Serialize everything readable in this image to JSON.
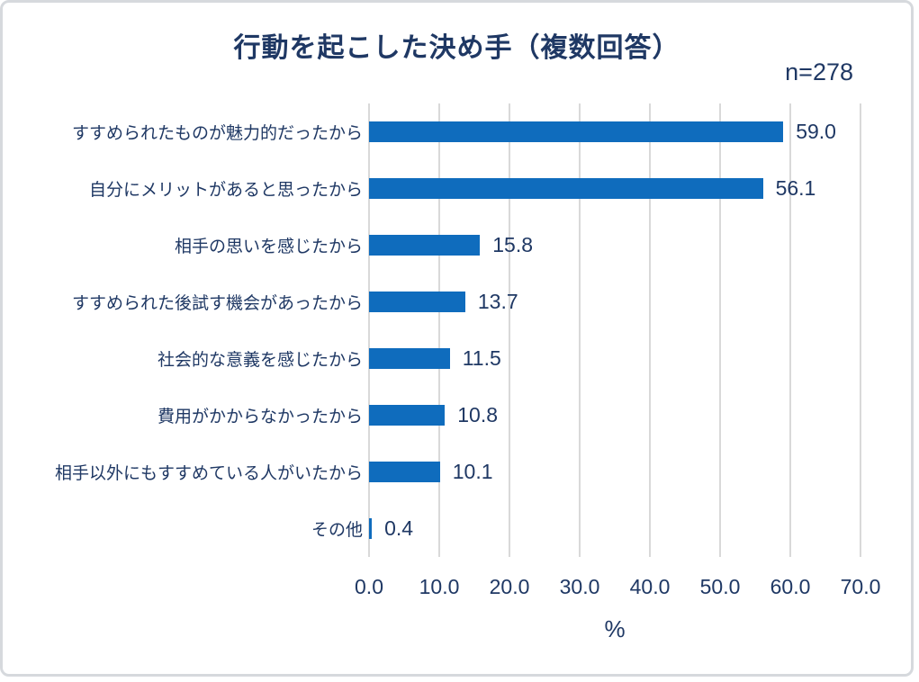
{
  "chart_data": {
    "type": "bar",
    "orientation": "horizontal",
    "title": "行動を起こした決め手（複数回答）",
    "sample_label": "n=278",
    "categories": [
      "すすめられたものが魅力的だったから",
      "自分にメリットがあると思ったから",
      "相手の思いを感じたから",
      "すすめられた後試す機会があったから",
      "社会的な意義を感じたから",
      "費用がかからなかったから",
      "相手以外にもすすめている人がいたから",
      "その他"
    ],
    "values": [
      59.0,
      56.1,
      15.8,
      13.7,
      11.5,
      10.8,
      10.1,
      0.4
    ],
    "xlabel": "%",
    "xlim": [
      0,
      70
    ],
    "xticks": [
      "0.0",
      "10.0",
      "20.0",
      "30.0",
      "40.0",
      "50.0",
      "60.0",
      "70.0"
    ],
    "grid": true,
    "legend": false,
    "colors": {
      "bar": "#0f6cbd",
      "text": "#1f3864",
      "gridline": "#d9d9d9",
      "frame_border": "#d6d9dd",
      "background": "#ffffff"
    }
  }
}
